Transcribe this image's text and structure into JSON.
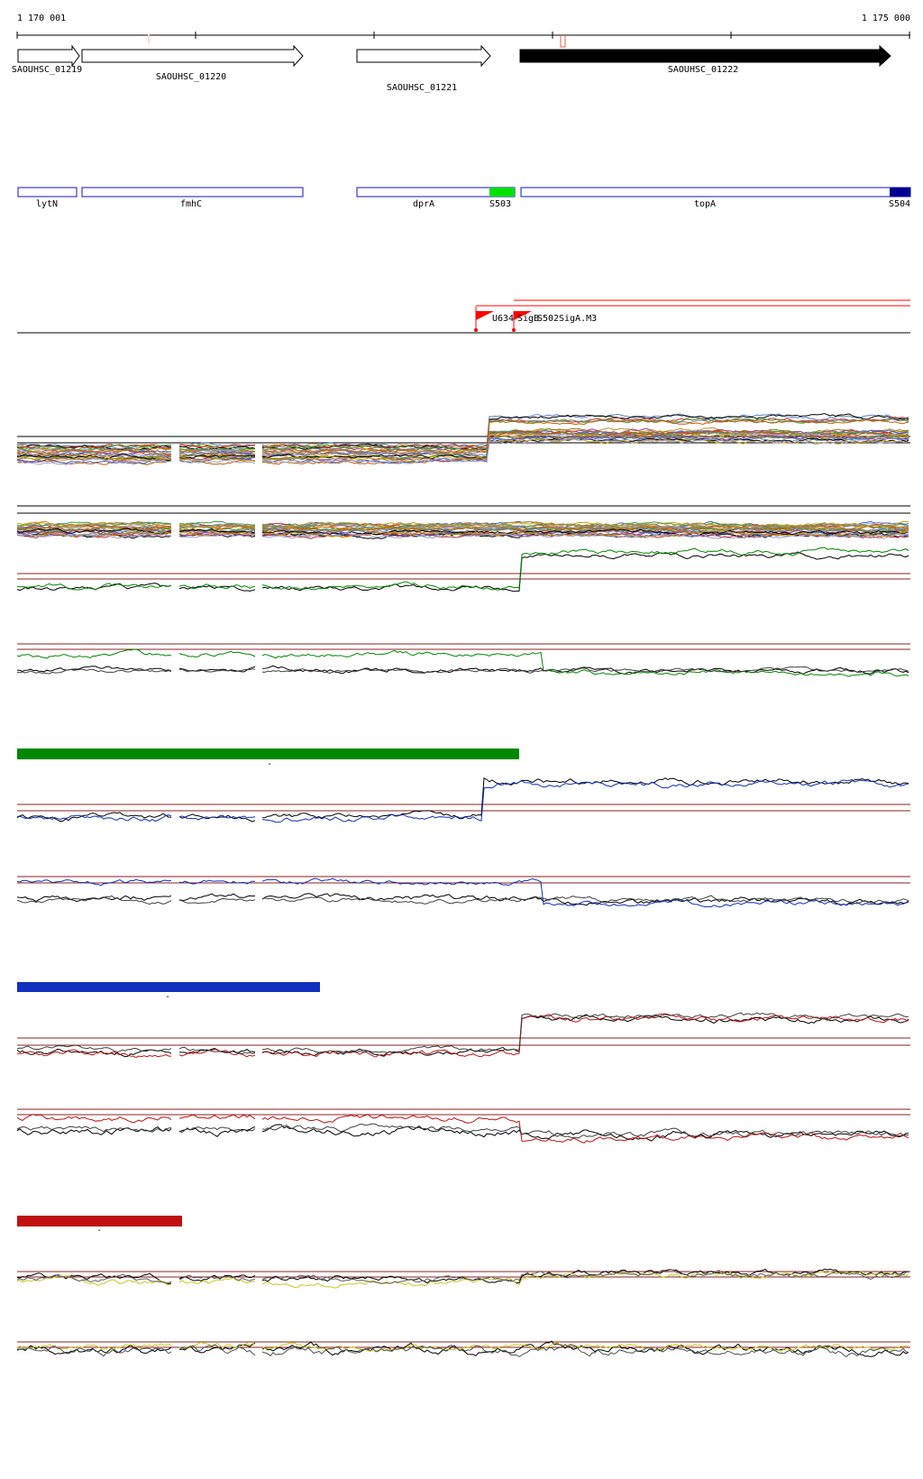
{
  "coordinates": {
    "start": "1 170 001",
    "end": "1 175 000"
  },
  "locus_tags": [
    {
      "label": "SAOUHSC_01219",
      "strand": "+",
      "highlighted": false
    },
    {
      "label": "SAOUHSC_01220",
      "strand": "+",
      "highlighted": false
    },
    {
      "label": "SAOUHSC_01221",
      "strand": "+",
      "highlighted": false
    },
    {
      "label": "SAOUHSC_01222",
      "strand": "+",
      "highlighted": true
    }
  ],
  "gene_names": [
    {
      "label": "lytN",
      "type": "gene"
    },
    {
      "label": "fmhC",
      "type": "gene"
    },
    {
      "label": "dprA",
      "type": "gene"
    },
    {
      "label": "S503",
      "type": "segment",
      "color": "#00e000"
    },
    {
      "label": "topA",
      "type": "gene"
    },
    {
      "label": "S504",
      "type": "segment",
      "color": "#000090"
    }
  ],
  "promoters": [
    "U634",
    "SigB",
    "S502",
    "SigA.M3"
  ],
  "condition_colors": {
    "group1": "#008800",
    "group2": "#1030c0",
    "group3": "#c01010",
    "group4": "#c8c820",
    "gene_outline": "#1010cc",
    "promoter": "#ff0000"
  },
  "legend_bars": [
    {
      "color": "#008800",
      "mark": "-"
    },
    {
      "color": "#1030c0",
      "mark": "-"
    },
    {
      "color": "#c01010",
      "mark": "-"
    }
  ]
}
